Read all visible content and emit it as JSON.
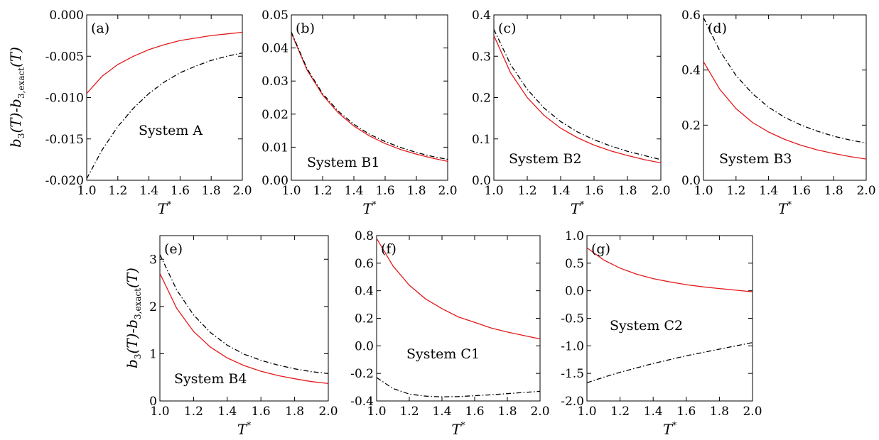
{
  "figure": {
    "ylabel_main": "b",
    "ylabel_sub1": "3",
    "ylabel_mid": "(T)-b",
    "ylabel_sub2": "3,exact",
    "ylabel_end": "(T)",
    "xlabel_main": "T",
    "xlabel_sup": "*"
  },
  "colors": {
    "red_series": "#e31a1c",
    "black_series": "#000000"
  },
  "chart_data": [
    {
      "type": "line",
      "panel_label": "(a)",
      "annotation": "System A",
      "xlim": [
        1.0,
        2.0
      ],
      "ylim": [
        -0.02,
        0.0
      ],
      "xticks": [
        1.0,
        1.2,
        1.4,
        1.6,
        1.8,
        2.0
      ],
      "xtick_labels": [
        "1.0",
        "1.2",
        "1.4",
        "1.6",
        "1.8",
        "2.0"
      ],
      "yticks": [
        -0.02,
        -0.015,
        -0.01,
        -0.005,
        0.0
      ],
      "ytick_labels": [
        "-0.020",
        "-0.015",
        "-0.010",
        "-0.005",
        "0.000"
      ],
      "x": [
        1.0,
        1.1,
        1.2,
        1.3,
        1.4,
        1.5,
        1.6,
        1.7,
        1.8,
        1.9,
        2.0
      ],
      "series": [
        {
          "color": "#e31a1c",
          "style": "solid",
          "values": [
            -0.0095,
            -0.0074,
            -0.006,
            -0.005,
            -0.0042,
            -0.0036,
            -0.0031,
            -0.0028,
            -0.0025,
            -0.0023,
            -0.0021
          ]
        },
        {
          "color": "#000000",
          "style": "dashdot",
          "values": [
            -0.0198,
            -0.0163,
            -0.0135,
            -0.0113,
            -0.0095,
            -0.0081,
            -0.007,
            -0.0062,
            -0.0055,
            -0.005,
            -0.0046
          ]
        }
      ]
    },
    {
      "type": "line",
      "panel_label": "(b)",
      "annotation": "System B1",
      "xlim": [
        1.0,
        2.0
      ],
      "ylim": [
        0.0,
        0.05
      ],
      "xticks": [
        1.0,
        1.2,
        1.4,
        1.6,
        1.8,
        2.0
      ],
      "xtick_labels": [
        "1.0",
        "1.2",
        "1.4",
        "1.6",
        "1.8",
        "2.0"
      ],
      "yticks": [
        0.0,
        0.01,
        0.02,
        0.03,
        0.04,
        0.05
      ],
      "ytick_labels": [
        "0.00",
        "0.01",
        "0.02",
        "0.03",
        "0.04",
        "0.05"
      ],
      "x": [
        1.0,
        1.1,
        1.2,
        1.3,
        1.4,
        1.5,
        1.6,
        1.7,
        1.8,
        1.9,
        2.0
      ],
      "series": [
        {
          "color": "#e31a1c",
          "style": "solid",
          "values": [
            0.0445,
            0.0334,
            0.0258,
            0.0204,
            0.0164,
            0.0134,
            0.0111,
            0.0093,
            0.0079,
            0.0067,
            0.0057
          ]
        },
        {
          "color": "#000000",
          "style": "dashdot",
          "values": [
            0.0448,
            0.0338,
            0.0262,
            0.0209,
            0.0169,
            0.0139,
            0.0117,
            0.0099,
            0.0084,
            0.0072,
            0.0063
          ]
        }
      ]
    },
    {
      "type": "line",
      "panel_label": "(c)",
      "annotation": "System B2",
      "xlim": [
        1.0,
        2.0
      ],
      "ylim": [
        0.0,
        0.4
      ],
      "xticks": [
        1.0,
        1.2,
        1.4,
        1.6,
        1.8,
        2.0
      ],
      "xtick_labels": [
        "1.0",
        "1.2",
        "1.4",
        "1.6",
        "1.8",
        "2.0"
      ],
      "yticks": [
        0.0,
        0.1,
        0.2,
        0.3,
        0.4
      ],
      "ytick_labels": [
        "0.0",
        "0.1",
        "0.2",
        "0.3",
        "0.4"
      ],
      "x": [
        1.0,
        1.1,
        1.2,
        1.3,
        1.4,
        1.5,
        1.6,
        1.7,
        1.8,
        1.9,
        2.0
      ],
      "series": [
        {
          "color": "#e31a1c",
          "style": "solid",
          "values": [
            0.35,
            0.26,
            0.2,
            0.157,
            0.126,
            0.103,
            0.085,
            0.071,
            0.06,
            0.05,
            0.042
          ]
        },
        {
          "color": "#000000",
          "style": "dashdot",
          "values": [
            0.365,
            0.28,
            0.22,
            0.175,
            0.142,
            0.117,
            0.098,
            0.083,
            0.07,
            0.06,
            0.05
          ]
        }
      ]
    },
    {
      "type": "line",
      "panel_label": "(d)",
      "annotation": "System B3",
      "xlim": [
        1.0,
        2.0
      ],
      "ylim": [
        0.0,
        0.6
      ],
      "xticks": [
        1.0,
        1.2,
        1.4,
        1.6,
        1.8,
        2.0
      ],
      "xtick_labels": [
        "1.0",
        "1.2",
        "1.4",
        "1.6",
        "1.8",
        "2.0"
      ],
      "yticks": [
        0.0,
        0.2,
        0.4,
        0.6
      ],
      "ytick_labels": [
        "0.0",
        "0.2",
        "0.4",
        "0.6"
      ],
      "x": [
        1.0,
        1.1,
        1.2,
        1.3,
        1.4,
        1.5,
        1.6,
        1.7,
        1.8,
        1.9,
        2.0
      ],
      "series": [
        {
          "color": "#e31a1c",
          "style": "solid",
          "values": [
            0.43,
            0.33,
            0.26,
            0.21,
            0.175,
            0.148,
            0.127,
            0.11,
            0.097,
            0.086,
            0.077
          ]
        },
        {
          "color": "#000000",
          "style": "dashdot",
          "values": [
            0.59,
            0.47,
            0.38,
            0.315,
            0.265,
            0.228,
            0.2,
            0.178,
            0.16,
            0.146,
            0.135
          ]
        }
      ]
    },
    {
      "type": "line",
      "panel_label": "(e)",
      "annotation": "System B4",
      "xlim": [
        1.0,
        2.0
      ],
      "ylim": [
        0.0,
        3.5
      ],
      "xticks": [
        1.0,
        1.2,
        1.4,
        1.6,
        1.8,
        2.0
      ],
      "xtick_labels": [
        "1.0",
        "1.2",
        "1.4",
        "1.6",
        "1.8",
        "2.0"
      ],
      "yticks": [
        0,
        1,
        2,
        3
      ],
      "ytick_labels": [
        "0",
        "1",
        "2",
        "3"
      ],
      "x": [
        1.0,
        1.1,
        1.2,
        1.3,
        1.4,
        1.5,
        1.6,
        1.7,
        1.8,
        1.9,
        2.0
      ],
      "series": [
        {
          "color": "#e31a1c",
          "style": "solid",
          "values": [
            2.7,
            1.96,
            1.47,
            1.14,
            0.91,
            0.75,
            0.63,
            0.54,
            0.47,
            0.41,
            0.37
          ]
        },
        {
          "color": "#000000",
          "style": "dashdot",
          "values": [
            3.1,
            2.35,
            1.82,
            1.45,
            1.18,
            0.99,
            0.86,
            0.76,
            0.68,
            0.62,
            0.58
          ]
        }
      ]
    },
    {
      "type": "line",
      "panel_label": "(f)",
      "annotation": "System C1",
      "xlim": [
        1.0,
        2.0
      ],
      "ylim": [
        -0.4,
        0.8
      ],
      "xticks": [
        1.0,
        1.2,
        1.4,
        1.6,
        1.8,
        2.0
      ],
      "xtick_labels": [
        "1.0",
        "1.2",
        "1.4",
        "1.6",
        "1.8",
        "2.0"
      ],
      "yticks": [
        -0.4,
        -0.2,
        0.0,
        0.2,
        0.4,
        0.6,
        0.8
      ],
      "ytick_labels": [
        "-0.4",
        "-0.2",
        "0.0",
        "0.2",
        "0.4",
        "0.6",
        "0.8"
      ],
      "x": [
        1.0,
        1.1,
        1.2,
        1.3,
        1.4,
        1.5,
        1.6,
        1.7,
        1.8,
        1.9,
        2.0
      ],
      "series": [
        {
          "color": "#e31a1c",
          "style": "solid",
          "values": [
            0.78,
            0.58,
            0.44,
            0.34,
            0.27,
            0.21,
            0.17,
            0.13,
            0.1,
            0.075,
            0.05
          ]
        },
        {
          "color": "#000000",
          "style": "dashdot",
          "values": [
            -0.23,
            -0.31,
            -0.35,
            -0.365,
            -0.37,
            -0.368,
            -0.362,
            -0.355,
            -0.347,
            -0.338,
            -0.33
          ]
        }
      ]
    },
    {
      "type": "line",
      "panel_label": "(g)",
      "annotation": "System C2",
      "xlim": [
        1.0,
        2.0
      ],
      "ylim": [
        -2.0,
        1.0
      ],
      "xticks": [
        1.0,
        1.2,
        1.4,
        1.6,
        1.8,
        2.0
      ],
      "xtick_labels": [
        "1.0",
        "1.2",
        "1.4",
        "1.6",
        "1.8",
        "2.0"
      ],
      "yticks": [
        -2.0,
        -1.5,
        -1.0,
        -0.5,
        0.0,
        0.5,
        1.0
      ],
      "ytick_labels": [
        "-2.0",
        "-1.5",
        "-1.0",
        "-0.5",
        "0.0",
        "0.5",
        "1.0"
      ],
      "x": [
        1.0,
        1.1,
        1.2,
        1.3,
        1.4,
        1.5,
        1.6,
        1.7,
        1.8,
        1.9,
        2.0
      ],
      "series": [
        {
          "color": "#e31a1c",
          "style": "solid",
          "values": [
            0.78,
            0.56,
            0.41,
            0.3,
            0.22,
            0.16,
            0.11,
            0.07,
            0.04,
            0.01,
            -0.02
          ]
        },
        {
          "color": "#000000",
          "style": "dashdot",
          "values": [
            -1.67,
            -1.57,
            -1.48,
            -1.4,
            -1.32,
            -1.25,
            -1.18,
            -1.12,
            -1.06,
            -1.0,
            -0.94
          ]
        }
      ]
    }
  ]
}
